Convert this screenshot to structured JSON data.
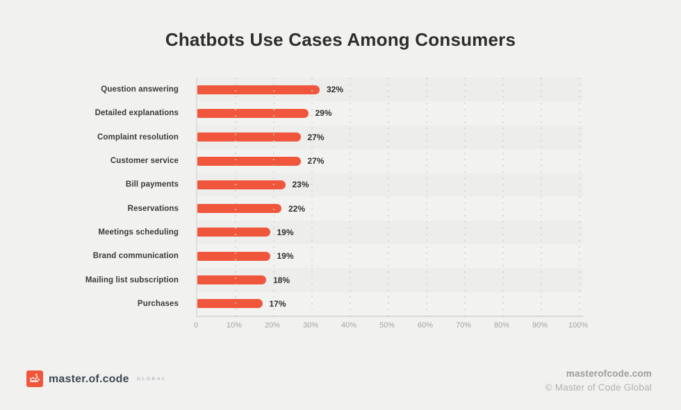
{
  "title": "Chatbots Use Cases Among Consumers",
  "chart_data": {
    "type": "bar",
    "orientation": "horizontal",
    "title": "Chatbots Use Cases Among Consumers",
    "categories": [
      "Question answering",
      "Detailed explanations",
      "Complaint resolution",
      "Customer service",
      "Bill payments",
      "Reservations",
      "Meetings scheduling",
      "Brand communication",
      "Mailing list subscription",
      "Purchases"
    ],
    "values": [
      32,
      29,
      27,
      27,
      23,
      22,
      19,
      19,
      18,
      17
    ],
    "value_labels": [
      "32%",
      "29%",
      "27%",
      "27%",
      "23%",
      "22%",
      "19%",
      "19%",
      "18%",
      "17%"
    ],
    "x_ticks": [
      "0",
      "10%",
      "20%",
      "30%",
      "40%",
      "50%",
      "60%",
      "70%",
      "80%",
      "90%",
      "100%"
    ],
    "xlim": [
      0,
      100
    ],
    "xlabel": "",
    "ylabel": "",
    "grid": "vertical-dotted",
    "legend": "none",
    "bar_color": "#f0563c",
    "row_band_dark": "#ededeb",
    "row_band_light": "#f2f2f0"
  },
  "footer": {
    "logo_text": "master.of.code",
    "logo_suffix": "GLOBAL",
    "logo_color": "#f0563c",
    "website": "masterofcode.com",
    "copyright": "© Master of Code Global"
  }
}
